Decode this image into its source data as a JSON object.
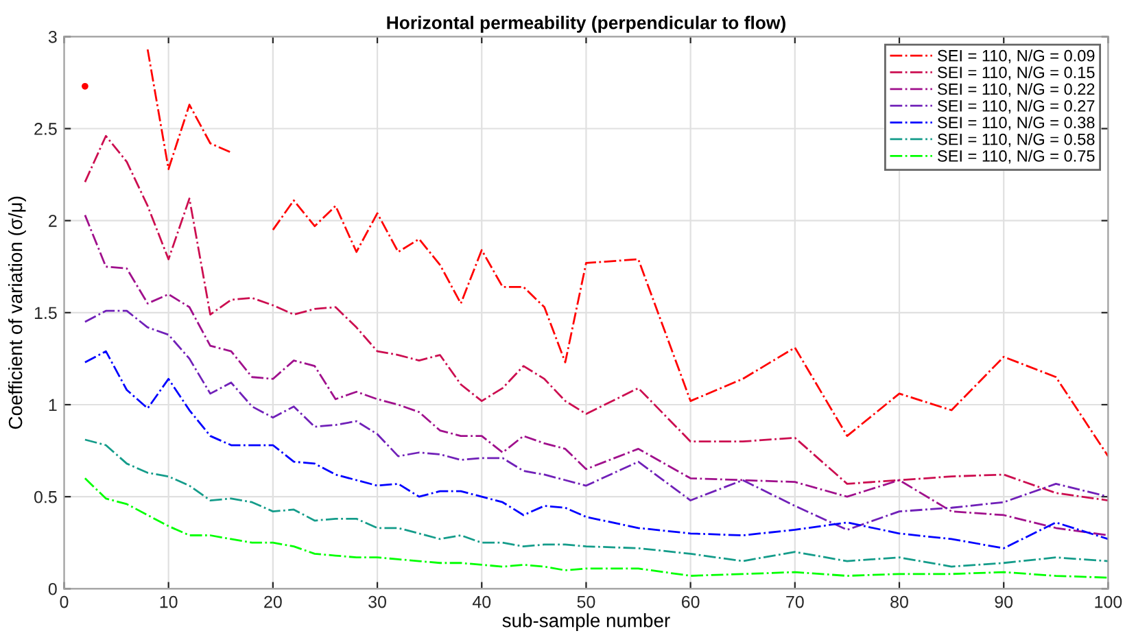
{
  "chart_data": {
    "type": "line",
    "title": "Horizontal permeability (perpendicular to flow)",
    "xlabel": "sub-sample number",
    "ylabel": "Coefficient of variation (σ/μ)",
    "x": [
      2,
      4,
      6,
      8,
      10,
      12,
      14,
      16,
      18,
      20,
      22,
      24,
      26,
      28,
      30,
      32,
      34,
      36,
      38,
      40,
      42,
      44,
      46,
      48,
      50,
      55,
      60,
      65,
      70,
      75,
      80,
      85,
      90,
      95,
      100
    ],
    "series": [
      {
        "name": "SEI = 110, N/G = 0.09",
        "color": "#ff0000",
        "values": [
          2.73,
          null,
          null,
          2.93,
          2.28,
          2.63,
          2.42,
          2.37,
          null,
          1.95,
          2.11,
          1.97,
          2.08,
          1.83,
          2.04,
          1.83,
          1.9,
          1.76,
          1.55,
          1.84,
          1.64,
          1.64,
          1.53,
          1.23,
          1.77,
          1.79,
          1.02,
          1.14,
          1.31,
          0.83,
          1.06,
          0.97,
          1.26,
          1.15,
          0.72
        ]
      },
      {
        "name": "SEI = 110, N/G = 0.15",
        "color": "#cc0e50",
        "values": [
          2.21,
          2.46,
          2.32,
          2.08,
          1.79,
          2.12,
          1.49,
          1.57,
          1.58,
          1.54,
          1.49,
          1.52,
          1.53,
          1.42,
          1.29,
          1.27,
          1.24,
          1.27,
          1.11,
          1.02,
          1.09,
          1.21,
          1.14,
          1.02,
          0.95,
          1.09,
          0.8,
          0.8,
          0.82,
          0.57,
          0.59,
          0.61,
          0.62,
          0.52,
          0.48
        ]
      },
      {
        "name": "SEI = 110, N/G = 0.22",
        "color": "#a0108c",
        "values": [
          2.03,
          1.75,
          1.74,
          1.55,
          1.6,
          1.53,
          1.32,
          1.29,
          1.15,
          1.14,
          1.24,
          1.21,
          1.03,
          1.07,
          1.03,
          1.0,
          0.96,
          0.86,
          0.83,
          0.83,
          0.74,
          0.83,
          0.79,
          0.76,
          0.65,
          0.76,
          0.6,
          0.59,
          0.58,
          0.5,
          0.59,
          0.42,
          0.4,
          0.33,
          0.29
        ]
      },
      {
        "name": "SEI = 110, N/G = 0.27",
        "color": "#7020b8",
        "values": [
          1.45,
          1.51,
          1.51,
          1.42,
          1.38,
          1.25,
          1.06,
          1.12,
          0.99,
          0.93,
          0.99,
          0.88,
          0.89,
          0.91,
          0.84,
          0.72,
          0.74,
          0.73,
          0.7,
          0.71,
          0.71,
          0.64,
          0.62,
          0.59,
          0.56,
          0.69,
          0.48,
          0.59,
          0.45,
          0.32,
          0.42,
          0.44,
          0.47,
          0.57,
          0.5
        ]
      },
      {
        "name": "SEI = 110, N/G = 0.38",
        "color": "#0000ff",
        "values": [
          1.23,
          1.29,
          1.08,
          0.98,
          1.14,
          0.97,
          0.83,
          0.78,
          0.78,
          0.78,
          0.69,
          0.68,
          0.62,
          0.59,
          0.56,
          0.57,
          0.5,
          0.53,
          0.53,
          0.5,
          0.47,
          0.4,
          0.45,
          0.44,
          0.39,
          0.33,
          0.3,
          0.29,
          0.32,
          0.36,
          0.3,
          0.27,
          0.22,
          0.36,
          0.27
        ]
      },
      {
        "name": "SEI = 110, N/G = 0.58",
        "color": "#149c8a",
        "values": [
          0.81,
          0.78,
          0.68,
          0.63,
          0.61,
          0.56,
          0.48,
          0.49,
          0.47,
          0.42,
          0.43,
          0.37,
          0.38,
          0.38,
          0.33,
          0.33,
          0.3,
          0.27,
          0.29,
          0.25,
          0.25,
          0.23,
          0.24,
          0.24,
          0.23,
          0.22,
          0.19,
          0.15,
          0.2,
          0.15,
          0.17,
          0.12,
          0.14,
          0.17,
          0.15
        ]
      },
      {
        "name": "SEI = 110, N/G = 0.75",
        "color": "#00ff00",
        "values": [
          0.6,
          0.49,
          0.46,
          0.4,
          0.34,
          0.29,
          0.29,
          0.27,
          0.25,
          0.25,
          0.23,
          0.19,
          0.18,
          0.17,
          0.17,
          0.16,
          0.15,
          0.14,
          0.14,
          0.13,
          0.12,
          0.13,
          0.12,
          0.1,
          0.11,
          0.11,
          0.07,
          0.08,
          0.09,
          0.07,
          0.08,
          0.08,
          0.09,
          0.07,
          0.06
        ]
      }
    ],
    "xlim": [
      0,
      100
    ],
    "xticks": [
      0,
      10,
      20,
      30,
      40,
      50,
      60,
      70,
      80,
      90,
      100
    ],
    "ylim": [
      0,
      3
    ],
    "yticks": [
      0,
      0.5,
      1,
      1.5,
      2,
      2.5,
      3
    ],
    "grid": true,
    "legend": "top right",
    "marker": "none",
    "line_style": "dashed"
  }
}
